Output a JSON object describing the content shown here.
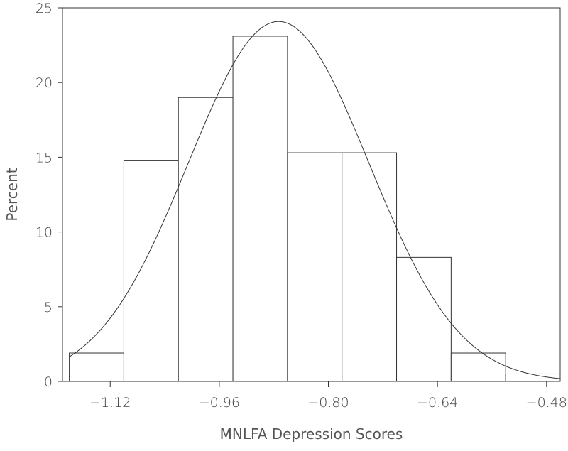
{
  "chart_data": {
    "type": "bar",
    "subtype": "histogram-with-normal-curve",
    "xlabel": "MNLFA Depression Scores",
    "ylabel": "Percent",
    "xlim": [
      -1.19,
      -0.46
    ],
    "ylim": [
      0,
      25
    ],
    "xticks": [
      -1.12,
      -0.96,
      -0.8,
      -0.64,
      -0.48
    ],
    "xtick_labels": [
      "−1.12",
      "−0.96",
      "−0.80",
      "−0.64",
      "−0.48"
    ],
    "yticks": [
      0,
      5,
      10,
      15,
      20,
      25
    ],
    "ytick_labels": [
      "0",
      "5",
      "10",
      "15",
      "20",
      "25"
    ],
    "bins": [
      {
        "x0": -1.18,
        "x1": -1.1,
        "value": 1.9
      },
      {
        "x0": -1.1,
        "x1": -1.02,
        "value": 14.8
      },
      {
        "x0": -1.02,
        "x1": -0.94,
        "value": 19.0
      },
      {
        "x0": -0.94,
        "x1": -0.86,
        "value": 23.1
      },
      {
        "x0": -0.86,
        "x1": -0.78,
        "value": 15.3
      },
      {
        "x0": -0.78,
        "x1": -0.7,
        "value": 15.3
      },
      {
        "x0": -0.7,
        "x1": -0.62,
        "value": 8.3
      },
      {
        "x0": -0.62,
        "x1": -0.54,
        "value": 1.9
      },
      {
        "x0": -0.54,
        "x1": -0.46,
        "value": 0.5
      }
    ],
    "normal_curve": {
      "mean": -0.873,
      "sd": 0.1325,
      "bin_width": 0.08
    },
    "grid": false,
    "legend": "none"
  }
}
